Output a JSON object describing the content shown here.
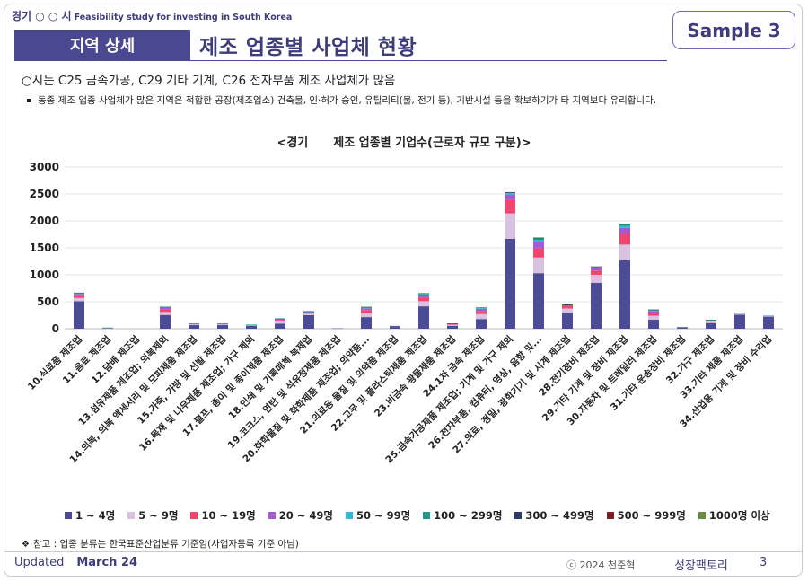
{
  "header": {
    "brand_main": "경기 ○ ○ 시",
    "brand_sub": "Feasibility study for investing in South Korea",
    "section_tag": "지역 상세",
    "page_title": "제조 업종별 사업체 현황",
    "sample_badge": "Sample 3"
  },
  "body": {
    "headline": "○시는 C25 금속가공, C29 기타 기계, C26 전자부품 제조 사업체가 많음",
    "bullet": "동종 제조 업종 사업체가 많은 지역은 적합한 공장(제조업소) 건축물, 인·허가 승인, 유틸리티(물, 전기 등), 기반시설 등을 확보하기가 타 지역보다 유리합니다."
  },
  "chart_title": {
    "left": "<경기",
    "right": "제조 업종별 기업수(근로자 규모 구분)>"
  },
  "chart_data": {
    "type": "bar",
    "stacked": true,
    "title": "<경기 제조 업종별 기업수(근로자 규모 구분)>",
    "ylim": [
      0,
      3000
    ],
    "yticks": [
      0,
      500,
      1000,
      1500,
      2000,
      2500,
      3000
    ],
    "grid": true,
    "legend_position": "bottom",
    "categories": [
      "10.식료품 제조업",
      "11.음료 제조업",
      "12.담배 제조업",
      "13.섬유제품 제조업; 의복제외",
      "14.의복, 의복 액세서리 및 모피제품 제조업",
      "15.가죽, 가방 및 신발 제조업",
      "16.목재 및 나무제품 제조업; 가구 제외",
      "17.펄프, 종이 및 종이제품 제조업",
      "18.인쇄 및 기록매체 복제업",
      "19.코크스, 연탄 및 석유정제품 제조업",
      "20.화학물질 및 화학제품 제조업; 의약품...",
      "21.의료용 물질 및 의약품 제조업",
      "22.고무 및 플라스틱제품 제조업",
      "23.비금속 광물제품 제조업",
      "24.1차 금속 제조업",
      "25.금속가공제품 제조업; 기계 및 가구 제외",
      "26.전자부품, 컴퓨터, 영상, 음향 및...",
      "27.의료, 정밀, 광학기기 및 시계 제조업",
      "28.전기장비 제조업",
      "29.기타 기계 및 장비 제조업",
      "30.자동차 및 트레일러 제조업",
      "31.기타 운송장비 제조업",
      "32.가구 제조업",
      "33.기타 제품 제조업",
      "34.산업용 기계 및 장비 수리업"
    ],
    "series": [
      {
        "name": "1 ~ 4명",
        "color": "#4b4b96",
        "values": [
          510,
          10,
          0,
          255,
          70,
          70,
          55,
          95,
          250,
          5,
          215,
          35,
          415,
          55,
          180,
          1670,
          1030,
          295,
          850,
          1270,
          170,
          20,
          105,
          260,
          220
        ]
      },
      {
        "name": "5 ~ 9명",
        "color": "#d8c2e0",
        "values": [
          60,
          3,
          0,
          55,
          15,
          15,
          10,
          35,
          30,
          2,
          75,
          5,
          95,
          18,
          90,
          470,
          290,
          80,
          150,
          290,
          70,
          5,
          30,
          20,
          10
        ]
      },
      {
        "name": "10 ~ 19명",
        "color": "#f0466e",
        "values": [
          40,
          2,
          0,
          50,
          8,
          8,
          6,
          30,
          20,
          1,
          55,
          4,
          70,
          12,
          60,
          250,
          170,
          40,
          80,
          190,
          55,
          4,
          15,
          10,
          5
        ]
      },
      {
        "name": "20 ~ 49명",
        "color": "#a35ad2",
        "values": [
          35,
          2,
          0,
          30,
          5,
          5,
          3,
          20,
          15,
          1,
          35,
          3,
          50,
          8,
          40,
          100,
          120,
          20,
          45,
          120,
          35,
          3,
          8,
          7,
          3
        ]
      },
      {
        "name": "50 ~ 99명",
        "color": "#2eb7d6",
        "values": [
          12,
          1,
          0,
          10,
          2,
          2,
          1,
          5,
          5,
          0,
          12,
          2,
          15,
          3,
          12,
          25,
          40,
          6,
          15,
          40,
          12,
          1,
          3,
          2,
          1
        ]
      },
      {
        "name": "100 ~ 299명",
        "color": "#1a9a86",
        "values": [
          8,
          1,
          0,
          5,
          1,
          1,
          1,
          3,
          3,
          0,
          8,
          2,
          10,
          2,
          8,
          15,
          30,
          4,
          10,
          25,
          10,
          1,
          2,
          1,
          1
        ]
      },
      {
        "name": "300 ~ 499명",
        "color": "#2a3f66",
        "values": [
          2,
          0,
          0,
          1,
          0,
          0,
          0,
          1,
          1,
          0,
          2,
          1,
          2,
          1,
          2,
          3,
          6,
          1,
          2,
          4,
          2,
          0,
          1,
          0,
          0
        ]
      },
      {
        "name": "500 ~ 999명",
        "color": "#7a2020",
        "values": [
          1,
          0,
          0,
          0,
          0,
          0,
          0,
          0,
          0,
          0,
          1,
          0,
          1,
          0,
          1,
          1,
          4,
          1,
          1,
          2,
          2,
          0,
          0,
          0,
          0
        ]
      },
      {
        "name": "1000명 이상",
        "color": "#6b8a3a",
        "values": [
          0,
          0,
          0,
          0,
          0,
          0,
          0,
          0,
          0,
          0,
          1,
          0,
          0,
          0,
          0,
          0,
          3,
          0,
          0,
          1,
          1,
          0,
          0,
          0,
          0
        ]
      }
    ]
  },
  "footer": {
    "note": "참고 : 업종 분류는 한국표준산업분류 기준임(사업자등록 기준 아님)",
    "updated_label": "Updated",
    "updated_date": "March 24",
    "copyright": "ⓒ 2024 천준혁",
    "brand": "성장팩토리",
    "page_number": "3"
  }
}
